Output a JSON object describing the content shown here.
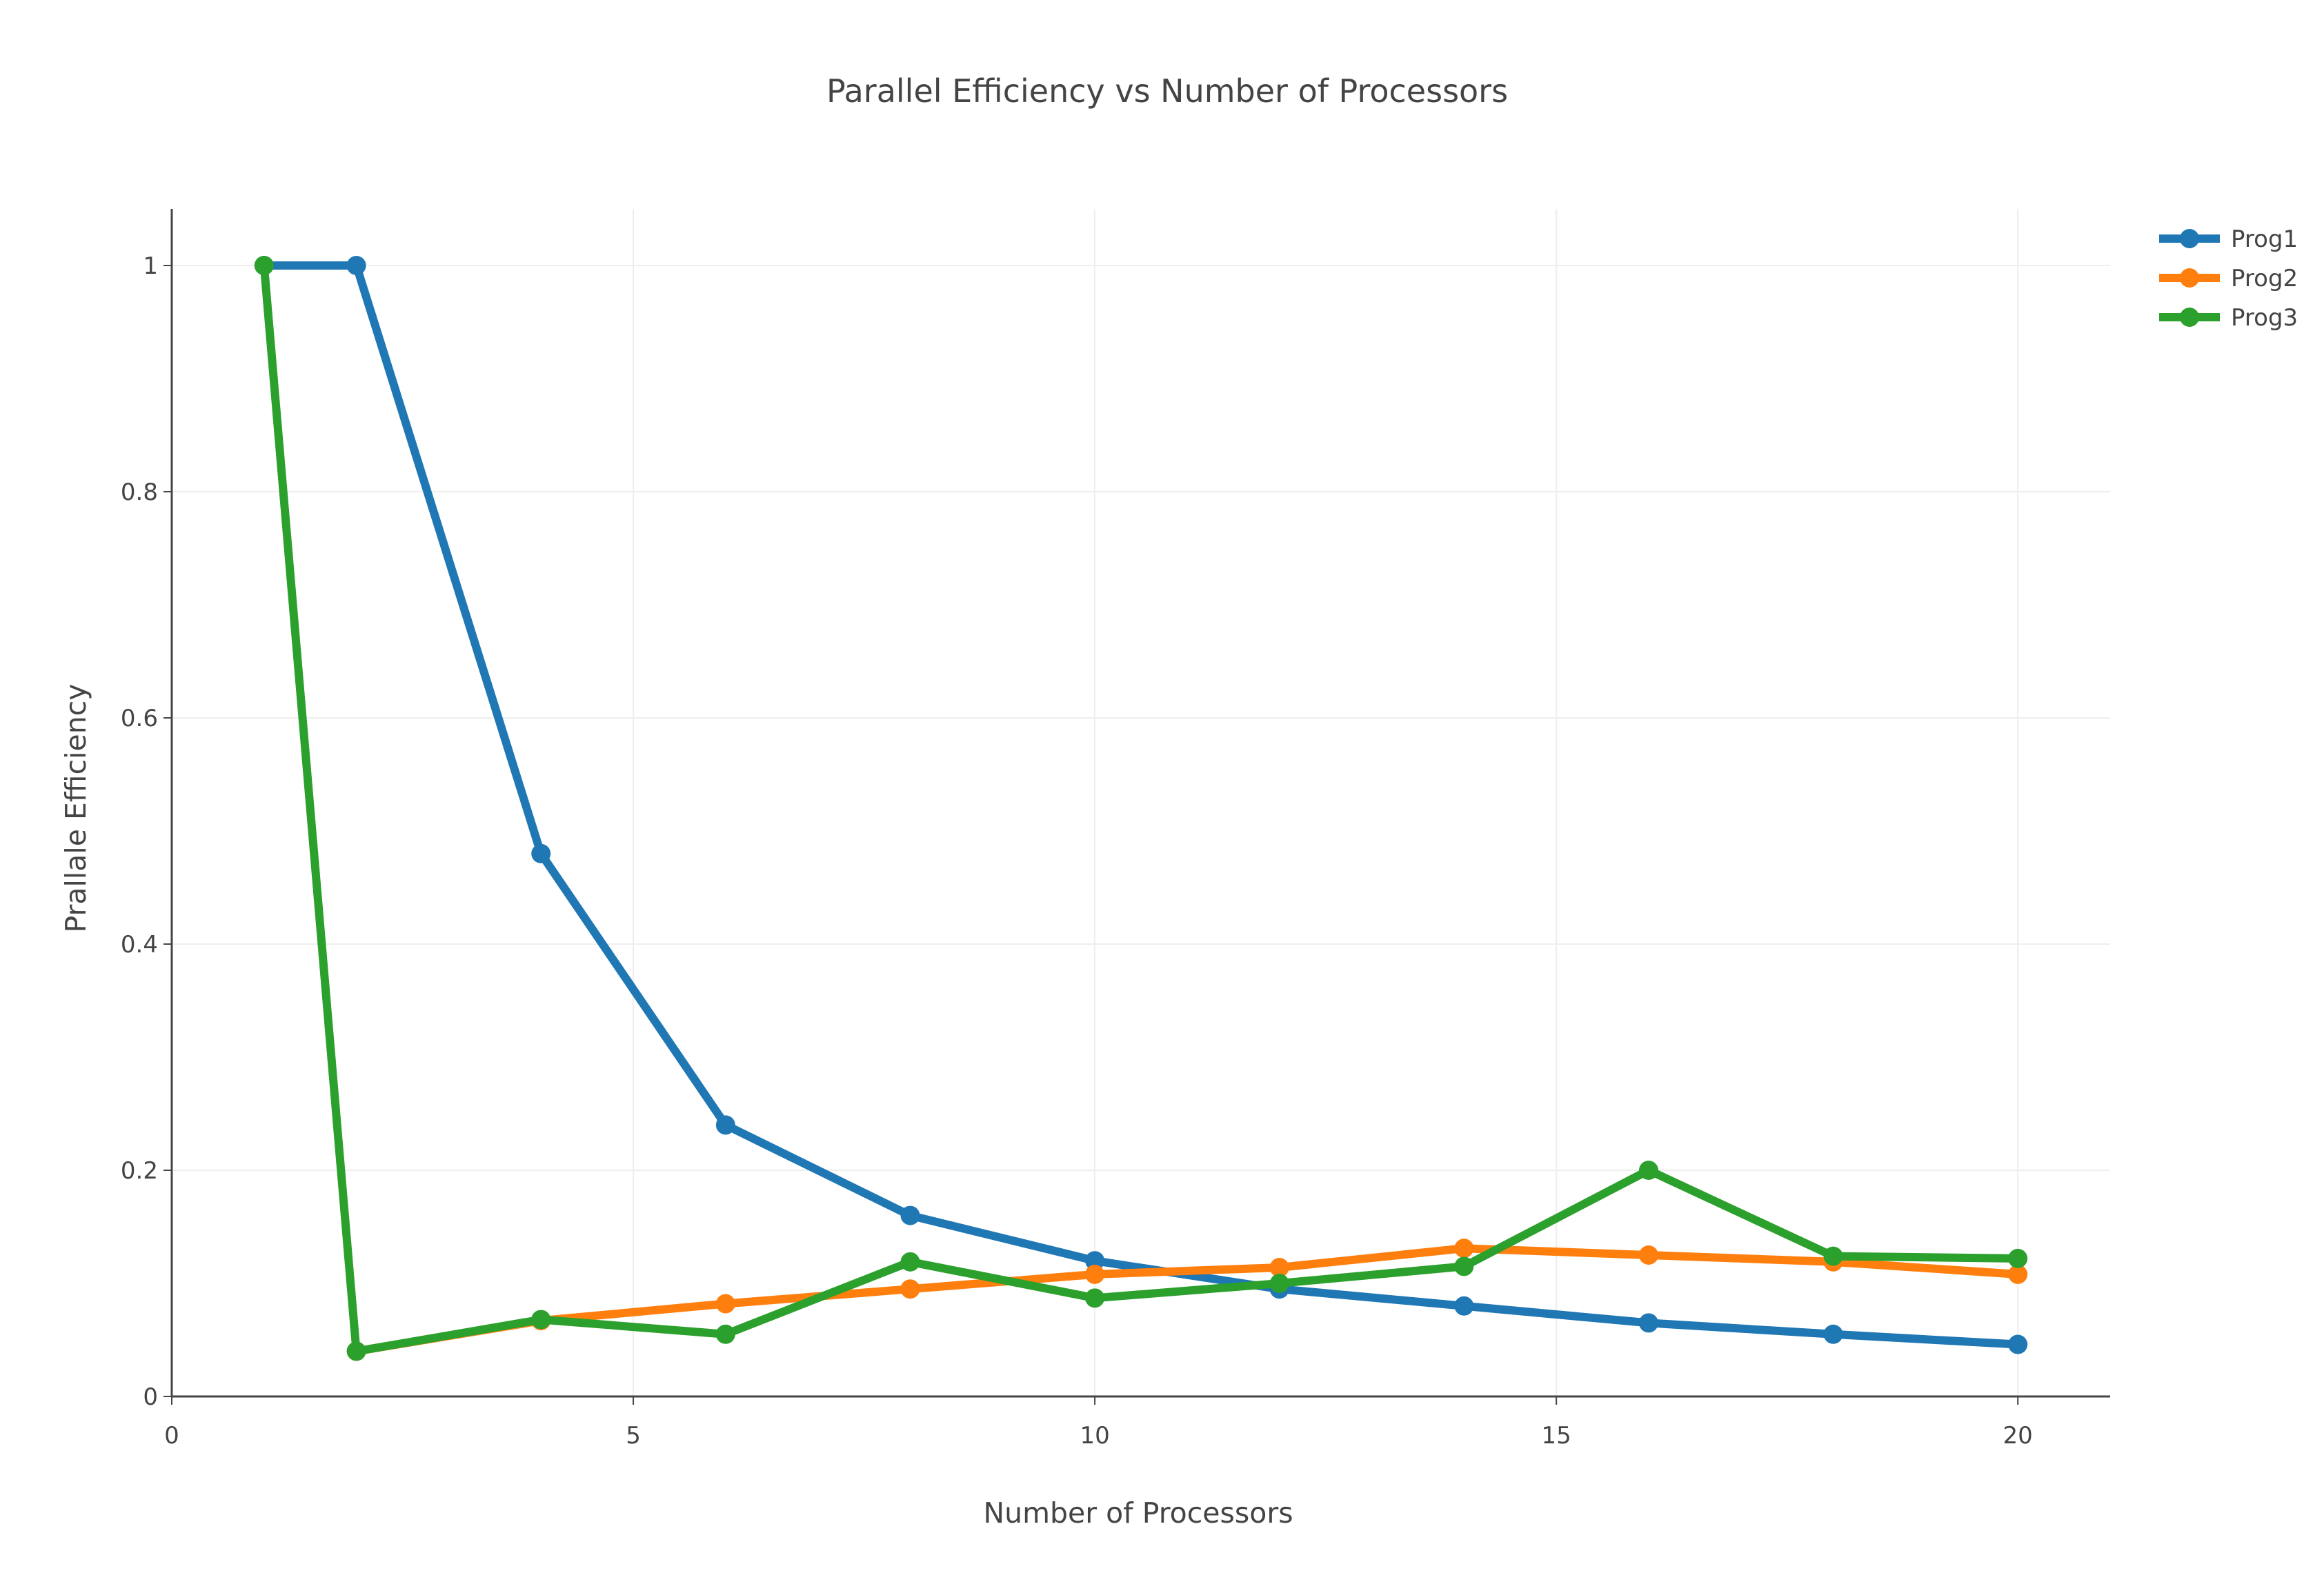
{
  "chart_data": {
    "type": "line",
    "title": "Parallel Efficiency vs Number of Processors",
    "xlabel": "Number of Processors",
    "ylabel": "Prallale Efficiency",
    "xlim": [
      0,
      21
    ],
    "ylim": [
      0,
      1.05
    ],
    "x_ticks": [
      0,
      5,
      10,
      15,
      20
    ],
    "x_tick_labels": [
      "0",
      "5",
      "10",
      "15",
      "20"
    ],
    "y_ticks": [
      0,
      0.2,
      0.4,
      0.6,
      0.8,
      1
    ],
    "y_tick_labels": [
      "0",
      "0.2",
      "0.4",
      "0.6",
      "0.8",
      "1"
    ],
    "grid": true,
    "legend_position": "top-right",
    "series": [
      {
        "name": "Prog1",
        "color": "#1f77b4",
        "x": [
          1,
          2,
          4,
          6,
          8,
          10,
          12,
          14,
          16,
          18,
          20
        ],
        "y": [
          1.0,
          1.0,
          0.48,
          0.24,
          0.16,
          0.12,
          0.095,
          0.08,
          0.065,
          0.055,
          0.046
        ]
      },
      {
        "name": "Prog2",
        "color": "#ff7f0e",
        "x": [
          2,
          4,
          6,
          8,
          10,
          12,
          14,
          16,
          18,
          20
        ],
        "y": [
          0.04,
          0.067,
          0.082,
          0.095,
          0.108,
          0.114,
          0.131,
          0.125,
          0.119,
          0.108
        ]
      },
      {
        "name": "Prog3",
        "color": "#2ca02c",
        "x": [
          1,
          2,
          4,
          6,
          8,
          10,
          12,
          14,
          16,
          18,
          20
        ],
        "y": [
          1.0,
          0.04,
          0.068,
          0.055,
          0.119,
          0.087,
          0.1,
          0.115,
          0.2,
          0.124,
          0.122
        ]
      }
    ]
  }
}
